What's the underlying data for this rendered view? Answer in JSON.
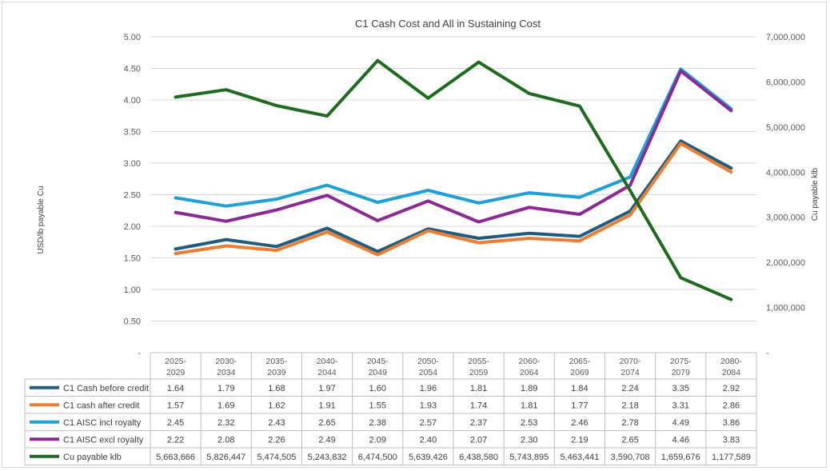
{
  "chart_data": {
    "type": "line",
    "title": "C1  Cash Cost and All in Sustaining Cost",
    "ylabel": "USD/lb payable Cu",
    "y2label": "Cu payable klb",
    "ylim": [
      0,
      5
    ],
    "y2lim": [
      0,
      7000000
    ],
    "yticks": [
      "-",
      "0.50",
      "1.00",
      "1.50",
      "2.00",
      "2.50",
      "3.00",
      "3.50",
      "4.00",
      "4.50",
      "5.00"
    ],
    "y2ticks": [
      "-",
      "1,000,000",
      "2,000,000",
      "3,000,000",
      "4,000,000",
      "5,000,000",
      "6,000,000",
      "7,000,000"
    ],
    "categories": [
      [
        "2025-",
        "2029"
      ],
      [
        "2030-",
        "2034"
      ],
      [
        "2035-",
        "2039"
      ],
      [
        "2040-",
        "2044"
      ],
      [
        "2045-",
        "2049"
      ],
      [
        "2050-",
        "2054"
      ],
      [
        "2055-",
        "2059"
      ],
      [
        "2060-",
        "2064"
      ],
      [
        "2065-",
        "2069"
      ],
      [
        "2070-",
        "2074"
      ],
      [
        "2075-",
        "2079"
      ],
      [
        "2080-",
        "2084"
      ]
    ],
    "series": [
      {
        "name": "C1 Cash before credit",
        "color": "#1f5c80",
        "axis": "left",
        "values": [
          1.64,
          1.79,
          1.68,
          1.97,
          1.6,
          1.96,
          1.81,
          1.89,
          1.84,
          2.24,
          3.35,
          2.92
        ],
        "labels": [
          "1.64",
          "1.79",
          "1.68",
          "1.97",
          "1.60",
          "1.96",
          "1.81",
          "1.89",
          "1.84",
          "2.24",
          "3.35",
          "2.92"
        ]
      },
      {
        "name": "C1 cash after credit",
        "color": "#ed7d31",
        "axis": "left",
        "values": [
          1.57,
          1.69,
          1.62,
          1.91,
          1.55,
          1.93,
          1.74,
          1.81,
          1.77,
          2.18,
          3.31,
          2.86
        ],
        "labels": [
          "1.57",
          "1.69",
          "1.62",
          "1.91",
          "1.55",
          "1.93",
          "1.74",
          "1.81",
          "1.77",
          "2.18",
          "3.31",
          "2.86"
        ]
      },
      {
        "name": "C1 AISC incl royalty",
        "color": "#1ea0d8",
        "axis": "left",
        "values": [
          2.45,
          2.32,
          2.43,
          2.65,
          2.38,
          2.57,
          2.37,
          2.53,
          2.46,
          2.78,
          4.49,
          3.86
        ],
        "labels": [
          "2.45",
          "2.32",
          "2.43",
          "2.65",
          "2.38",
          "2.57",
          "2.37",
          "2.53",
          "2.46",
          "2.78",
          "4.49",
          "3.86"
        ]
      },
      {
        "name": "C1 AISC excl royalty",
        "color": "#8b2a95",
        "axis": "left",
        "values": [
          2.22,
          2.08,
          2.26,
          2.49,
          2.09,
          2.4,
          2.07,
          2.3,
          2.19,
          2.65,
          4.46,
          3.83
        ],
        "labels": [
          "2.22",
          "2.08",
          "2.26",
          "2.49",
          "2.09",
          "2.40",
          "2.07",
          "2.30",
          "2.19",
          "2.65",
          "4.46",
          "3.83"
        ]
      },
      {
        "name": "Cu payable klb",
        "color": "#1e6b1e",
        "axis": "right",
        "values": [
          5663666,
          5826447,
          5474505,
          5243832,
          6474500,
          5639426,
          6438580,
          5743895,
          5463441,
          3590708,
          1659676,
          1177589
        ],
        "labels": [
          "5,663,666",
          "5,826,447",
          "5,474,505",
          "5,243,832",
          "6,474,500",
          "5,639,426",
          "6,438,580",
          "5,743,895",
          "5,463,441",
          "3,590,708",
          "1,659,676",
          "1,177,589"
        ]
      }
    ]
  }
}
